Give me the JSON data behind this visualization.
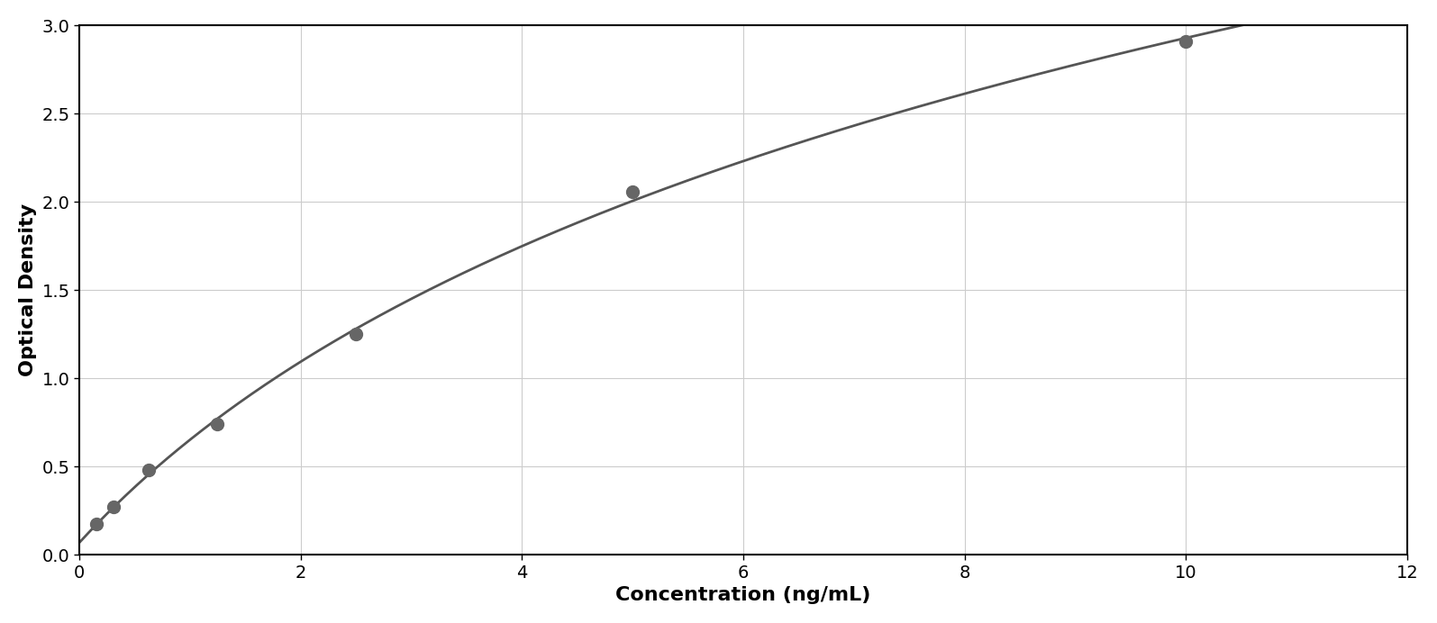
{
  "x_data": [
    0.156,
    0.313,
    0.625,
    1.25,
    2.5,
    5.0,
    10.0
  ],
  "y_data": [
    0.175,
    0.27,
    0.48,
    0.74,
    1.25,
    2.06,
    2.91
  ],
  "xlabel": "Concentration (ng/mL)",
  "ylabel": "Optical Density",
  "xlim": [
    0,
    12
  ],
  "ylim": [
    0,
    3
  ],
  "xticks": [
    0,
    2,
    4,
    6,
    8,
    10,
    12
  ],
  "yticks": [
    0,
    0.5,
    1.0,
    1.5,
    2.0,
    2.5,
    3.0
  ],
  "data_color": "#666666",
  "line_color": "#555555",
  "marker_size": 10,
  "line_width": 2.0,
  "background_color": "#ffffff",
  "grid_color": "#cccccc",
  "xlabel_fontsize": 16,
  "ylabel_fontsize": 16,
  "tick_fontsize": 14,
  "xlabel_fontweight": "bold",
  "ylabel_fontweight": "bold"
}
